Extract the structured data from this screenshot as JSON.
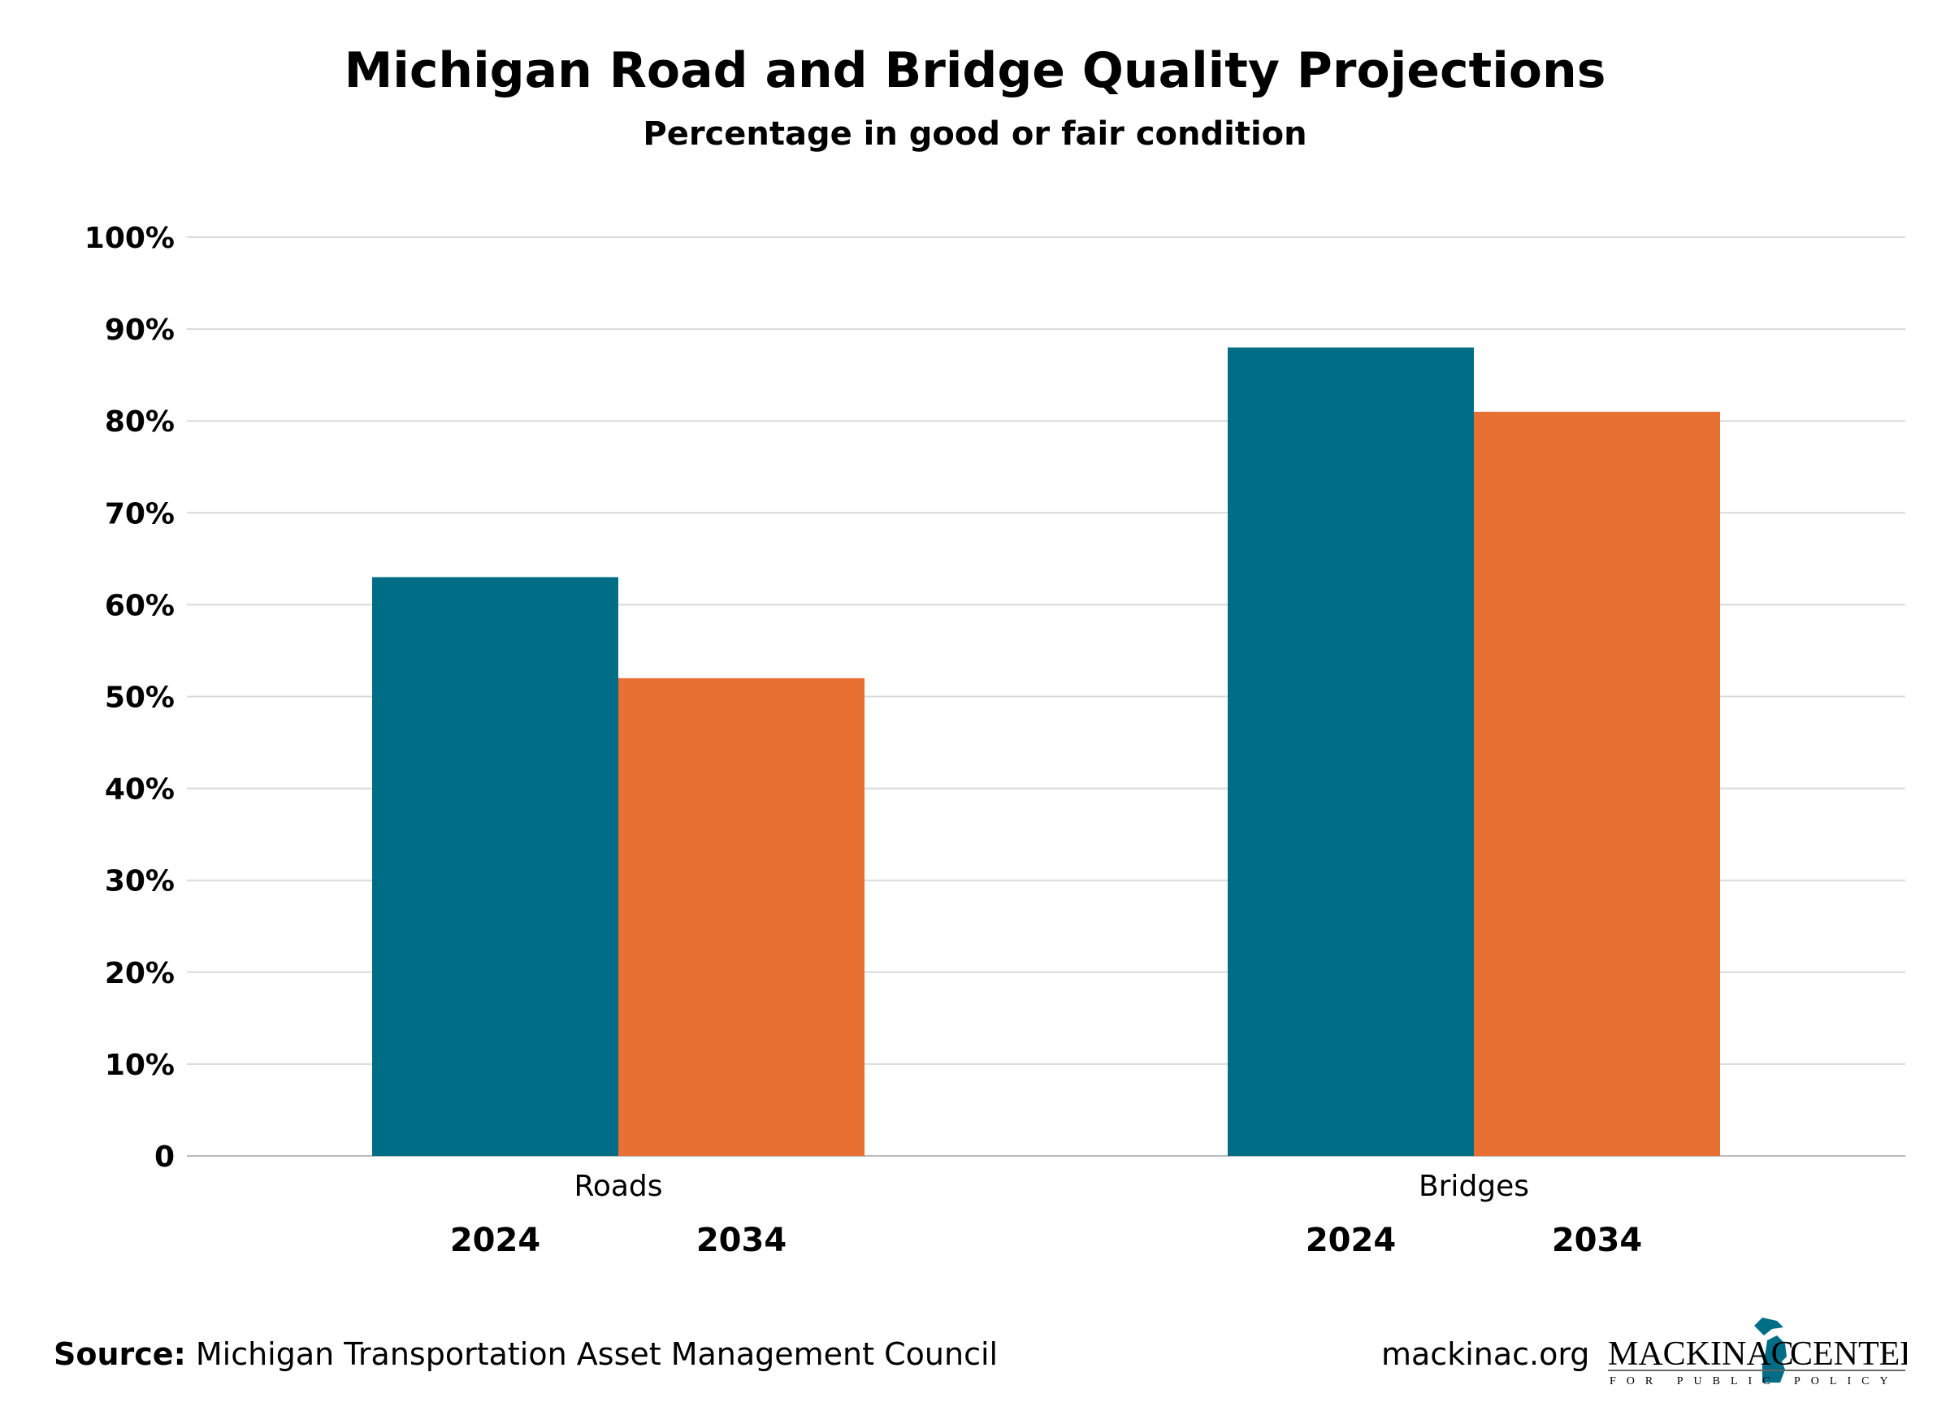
{
  "chart_data": {
    "type": "bar",
    "title": "Michigan Road and Bridge Quality Projections",
    "subtitle": "Percentage in good or fair condition",
    "categories": [
      "Roads",
      "Bridges"
    ],
    "series": [
      {
        "name": "2024",
        "color": "#006d87",
        "values": [
          63,
          88
        ]
      },
      {
        "name": "2034",
        "color": "#e97033",
        "values": [
          52,
          81
        ]
      }
    ],
    "ylim": [
      0,
      100
    ],
    "yticks": [
      0,
      10,
      20,
      30,
      40,
      50,
      60,
      70,
      80,
      90,
      100
    ],
    "ytick_labels": [
      "0",
      "10%",
      "20%",
      "30%",
      "40%",
      "50%",
      "60%",
      "70%",
      "80%",
      "90%",
      "100%"
    ],
    "grid": true,
    "legend": "year labels under each bar"
  },
  "footer": {
    "source_label": "Source:",
    "source_text": "Michigan Transportation Asset Management Council",
    "site": "mackinac.org",
    "logo_text": "MACKINAC CENTER FOR PUBLIC POLICY"
  }
}
